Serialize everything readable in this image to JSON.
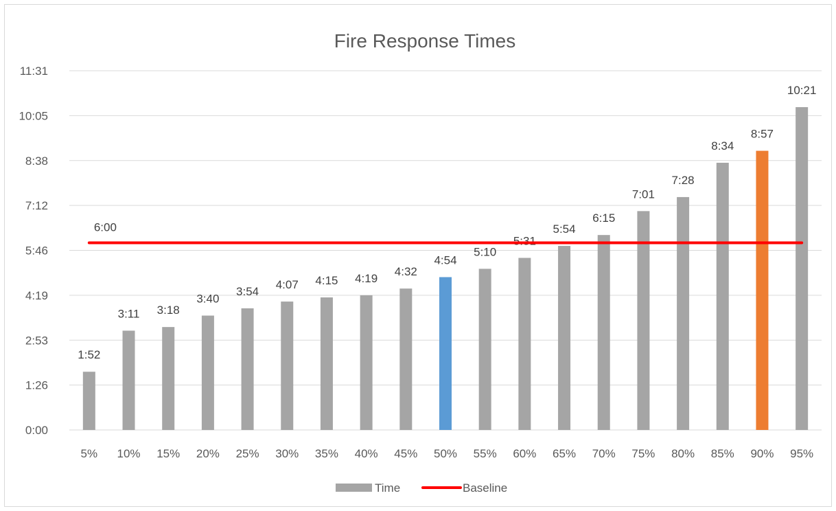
{
  "chart_data": {
    "type": "bar",
    "title": "Fire Response Times",
    "categories": [
      "5%",
      "10%",
      "15%",
      "20%",
      "25%",
      "30%",
      "35%",
      "40%",
      "45%",
      "50%",
      "55%",
      "60%",
      "65%",
      "70%",
      "75%",
      "80%",
      "85%",
      "90%",
      "95%"
    ],
    "series": [
      {
        "name": "Time",
        "type": "bar",
        "color": "#a5a5a5",
        "values_seconds": [
          112,
          191,
          198,
          220,
          234,
          247,
          255,
          259,
          272,
          294,
          310,
          331,
          354,
          375,
          421,
          448,
          514,
          537,
          621
        ],
        "labels": [
          "1:52",
          "3:11",
          "3:18",
          "3:40",
          "3:54",
          "4:07",
          "4:15",
          "4:19",
          "4:32",
          "4:54",
          "5:10",
          "5:31",
          "5:54",
          "6:15",
          "7:01",
          "7:28",
          "8:34",
          "8:57",
          "10:21"
        ],
        "highlights": [
          {
            "category": "50%",
            "color": "#5b9bd5"
          },
          {
            "category": "90%",
            "color": "#ed7d31"
          }
        ]
      },
      {
        "name": "Baseline",
        "type": "line",
        "color": "#ff0000",
        "value_seconds": 360,
        "label": "6:00"
      }
    ],
    "y_ticks": [
      "0:00",
      "1:26",
      "2:53",
      "4:19",
      "5:46",
      "7:12",
      "8:38",
      "10:05",
      "11:31"
    ],
    "ylim_seconds": [
      0,
      691
    ],
    "grid": true,
    "legend_position": "bottom",
    "gridline_color": "#d9d9d9"
  }
}
